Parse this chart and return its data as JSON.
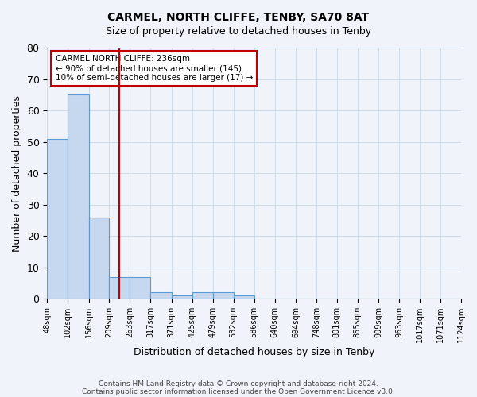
{
  "title": "CARMEL, NORTH CLIFFE, TENBY, SA70 8AT",
  "subtitle": "Size of property relative to detached houses in Tenby",
  "bar_values": [
    51,
    65,
    26,
    7,
    7,
    2,
    1,
    2,
    2,
    1,
    0,
    0,
    0,
    0,
    0,
    0,
    0,
    0,
    0,
    0
  ],
  "bin_labels": [
    "48sqm",
    "102sqm",
    "156sqm",
    "209sqm",
    "263sqm",
    "317sqm",
    "371sqm",
    "425sqm",
    "479sqm",
    "532sqm",
    "586sqm",
    "640sqm",
    "694sqm",
    "748sqm",
    "801sqm",
    "855sqm",
    "909sqm",
    "963sqm",
    "1017sqm",
    "1071sqm",
    "1124sqm"
  ],
  "bar_color": "#c5d8f0",
  "bar_edge_color": "#5b9bd5",
  "grid_color": "#d0dce8",
  "background_color": "#f0f4fa",
  "vline_x": 236,
  "vline_color": "#c00000",
  "annotation_title": "CARMEL NORTH CLIFFE: 236sqm",
  "annotation_line1": "← 90% of detached houses are smaller (145)",
  "annotation_line2": "10% of semi-detached houses are larger (17) →",
  "xlabel": "Distribution of detached houses by size in Tenby",
  "ylabel": "Number of detached properties",
  "ylim": [
    0,
    80
  ],
  "yticks": [
    0,
    10,
    20,
    30,
    40,
    50,
    60,
    70,
    80
  ],
  "footer1": "Contains HM Land Registry data © Crown copyright and database right 2024.",
  "footer2": "Contains public sector information licensed under the Open Government Licence v3.0.",
  "bin_edges": [
    48,
    102,
    156,
    209,
    263,
    317,
    371,
    425,
    479,
    532,
    586,
    640,
    694,
    748,
    801,
    855,
    909,
    963,
    1017,
    1071,
    1124
  ]
}
